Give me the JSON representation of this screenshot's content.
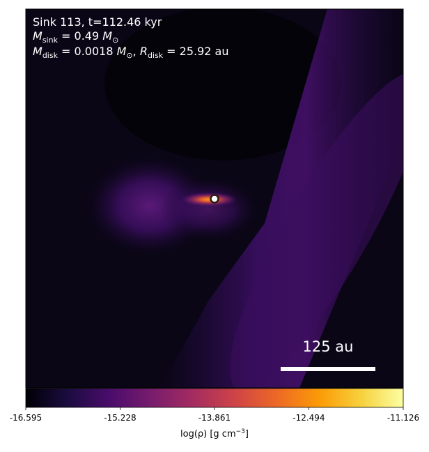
{
  "chart_data": {
    "type": "image",
    "annotations": [
      [
        "Sink 113, t=112.46 kyr"
      ],
      [
        "M",
        "sink",
        " = 0.49 ",
        "M",
        "⊙"
      ],
      [
        "M",
        "disk",
        " = 0.0018 ",
        "M",
        "⊙",
        ", ",
        "R",
        "disk",
        " = 25.92 au"
      ]
    ],
    "scale_bar_label": "125 au",
    "colormap": "inferno",
    "clim": [
      -16.595,
      -11.126
    ],
    "cticks": [
      -16.595,
      -15.228,
      -13.861,
      -12.494,
      -11.126
    ],
    "clabel": [
      "log(ρ) [g cm",
      "−3",
      "]"
    ]
  }
}
